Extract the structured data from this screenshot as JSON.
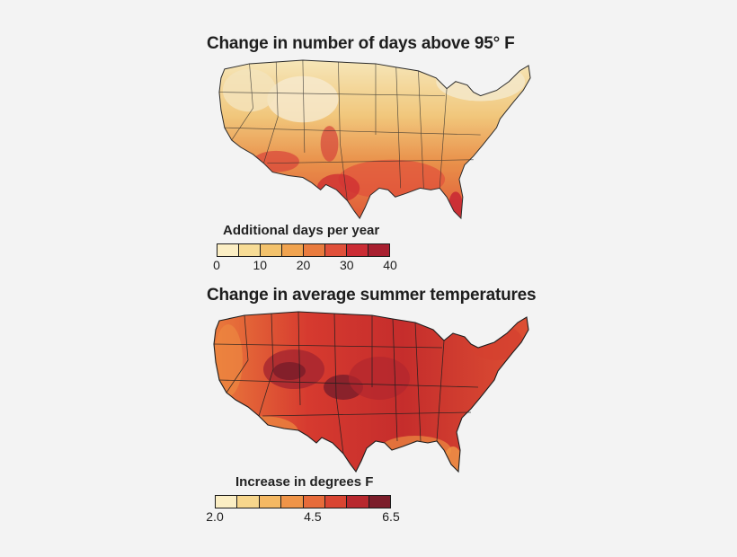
{
  "panels": [
    {
      "title": "Change in number of days above 95° F",
      "legend_title": "Additional days per year",
      "legend_colors": [
        "#fbeec4",
        "#f7dc96",
        "#f3c26c",
        "#f0a34f",
        "#e97b3e",
        "#e0503a",
        "#cb2c34",
        "#a81f2f"
      ],
      "tick_labels": [
        "0",
        "10",
        "20",
        "30",
        "40"
      ],
      "tick_values": [
        0,
        10,
        20,
        30,
        40
      ],
      "range": [
        0,
        40
      ]
    },
    {
      "title": "Change in average summer temperatures",
      "legend_title": "Increase in degrees F",
      "legend_colors": [
        "#fbeec4",
        "#f7d68c",
        "#f4b863",
        "#ef9448",
        "#e76b3a",
        "#d94532",
        "#b8282e",
        "#7c1d2a"
      ],
      "tick_labels": [
        "2.0",
        "4.5",
        "6.5"
      ],
      "tick_values": [
        2.0,
        4.5,
        6.5
      ],
      "range": [
        2.0,
        6.5
      ]
    }
  ]
}
